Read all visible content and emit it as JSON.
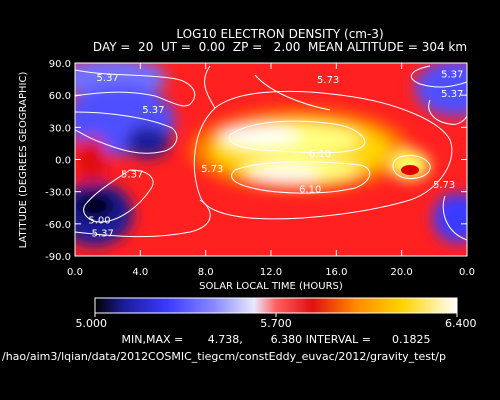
{
  "chart_data": {
    "type": "heatmap",
    "title": "LOG10 ELECTRON DENSITY (cm-3)",
    "subtitle": "DAY =  20  UT =  0.00  ZP =   2.00  MEAN ALTITUDE = 304 km",
    "xlabel": "SOLAR LOCAL TIME (HOURS)",
    "ylabel": "LATITUDE (DEGREES GEOGRAPHIC)",
    "xlim": [
      0,
      24
    ],
    "ylim": [
      -90,
      90
    ],
    "x_ticks": [
      "0.0",
      "4.0",
      "8.0",
      "12.0",
      "16.0",
      "20.0",
      "0.0"
    ],
    "y_ticks": [
      "90.0",
      "60.0",
      "30.0",
      "0.0",
      "-30.0",
      "-60.0",
      "-90.0"
    ],
    "colorbar": {
      "min": 5.0,
      "max": 6.4,
      "labels": [
        "5.000",
        "5.700",
        "6.400"
      ]
    },
    "colors": [
      "#000000",
      "#1c1c9a",
      "#3a3aff",
      "#8a8aff",
      "#e8e8ff",
      "#ffd8d8",
      "#ff4040",
      "#e01010",
      "#ff8a00",
      "#ffd400",
      "#ffff80",
      "#ffffff"
    ],
    "contour_labels": [
      {
        "text": "5.37",
        "slt": 2.0,
        "lat": 77
      },
      {
        "text": "5.37",
        "slt": 4.8,
        "lat": 47
      },
      {
        "text": "5.73",
        "slt": 15.5,
        "lat": 75
      },
      {
        "text": "5.37",
        "slt": 23.1,
        "lat": 80
      },
      {
        "text": "5.37",
        "slt": 23.1,
        "lat": 62
      },
      {
        "text": "5.37",
        "slt": 3.5,
        "lat": -13
      },
      {
        "text": "5.73",
        "slt": 8.4,
        "lat": -8
      },
      {
        "text": "6.10",
        "slt": 15.0,
        "lat": 6
      },
      {
        "text": "6.10",
        "slt": 14.4,
        "lat": -27
      },
      {
        "text": "5.73",
        "slt": 22.6,
        "lat": -23
      },
      {
        "text": "5.00",
        "slt": 1.5,
        "lat": -56
      },
      {
        "text": "5.37",
        "slt": 1.7,
        "lat": -68
      }
    ],
    "stats": "MIN,MAX =       4.738,        6.380 INTERVAL =      0.1825",
    "filepath": "/hao/aim3/lqian/data/2012COSMIC_tiegcm/constEddy_euvac/2012/gravity_test/p"
  }
}
